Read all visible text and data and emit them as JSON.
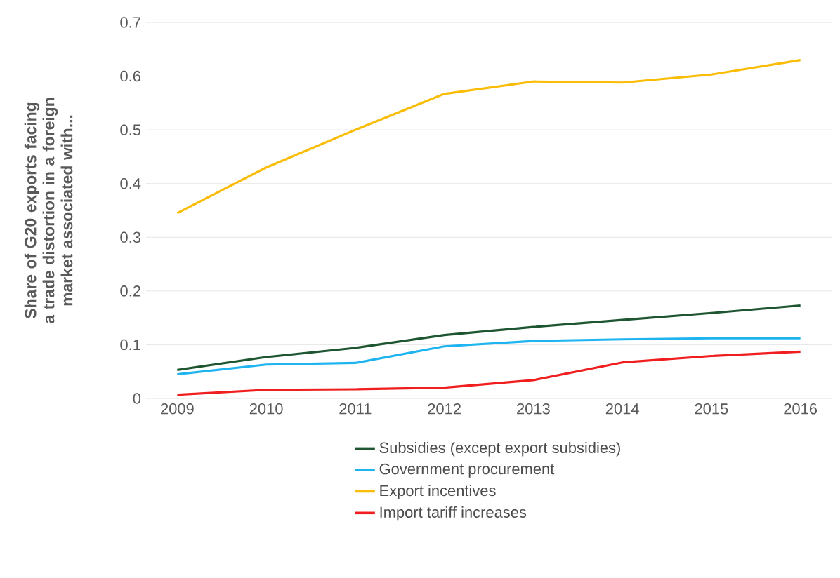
{
  "chart_data": {
    "type": "line",
    "ylabel": "Share of G20 exports facing a trade distortion in a foreign market associated with...",
    "categories": [
      "2009",
      "2010",
      "2011",
      "2012",
      "2013",
      "2014",
      "2015",
      "2016"
    ],
    "series": [
      {
        "name": "Subsidies (except export subsidies)",
        "color": "#1e5631",
        "values": [
          0.053,
          0.077,
          0.094,
          0.118,
          0.133,
          0.146,
          0.159,
          0.173
        ]
      },
      {
        "name": "Government procurement",
        "color": "#1eb4f0",
        "values": [
          0.045,
          0.063,
          0.066,
          0.097,
          0.107,
          0.11,
          0.112,
          0.112
        ]
      },
      {
        "name": "Export incentives",
        "color": "#fbbc05",
        "values": [
          0.345,
          0.43,
          0.5,
          0.567,
          0.59,
          0.588,
          0.603,
          0.63
        ]
      },
      {
        "name": "Import tariff increases",
        "color": "#f01e1e",
        "values": [
          0.007,
          0.016,
          0.017,
          0.02,
          0.034,
          0.067,
          0.079,
          0.087
        ]
      }
    ],
    "ylim": [
      0,
      0.7
    ],
    "yticks": [
      0,
      0.1,
      0.2,
      0.3,
      0.4,
      0.5,
      0.6,
      0.7
    ],
    "grid": "y",
    "legend": "bottom",
    "marker": "none",
    "line_style": "solid"
  }
}
